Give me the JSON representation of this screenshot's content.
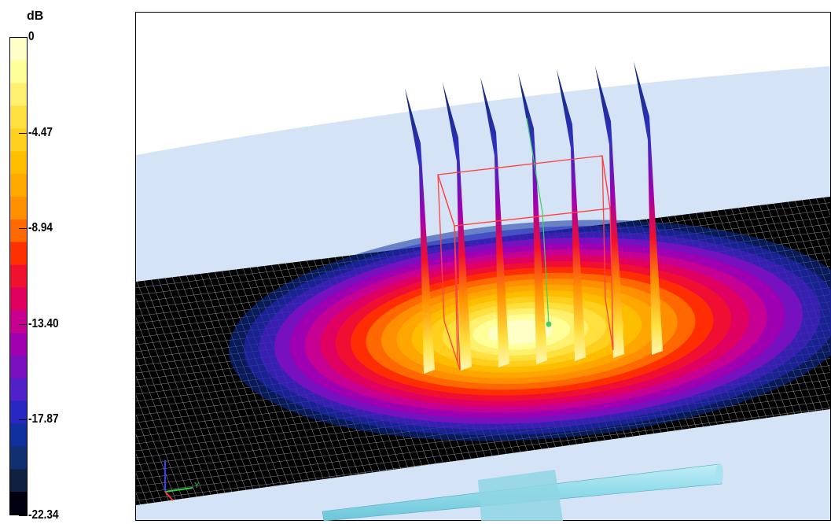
{
  "colorbar": {
    "unit": "dB",
    "ticks": [
      "0",
      "-4.47",
      "-8.94",
      "-13.40",
      "-17.87",
      "-22.34"
    ]
  },
  "axes_icon": {
    "y_label": "Y"
  }
}
